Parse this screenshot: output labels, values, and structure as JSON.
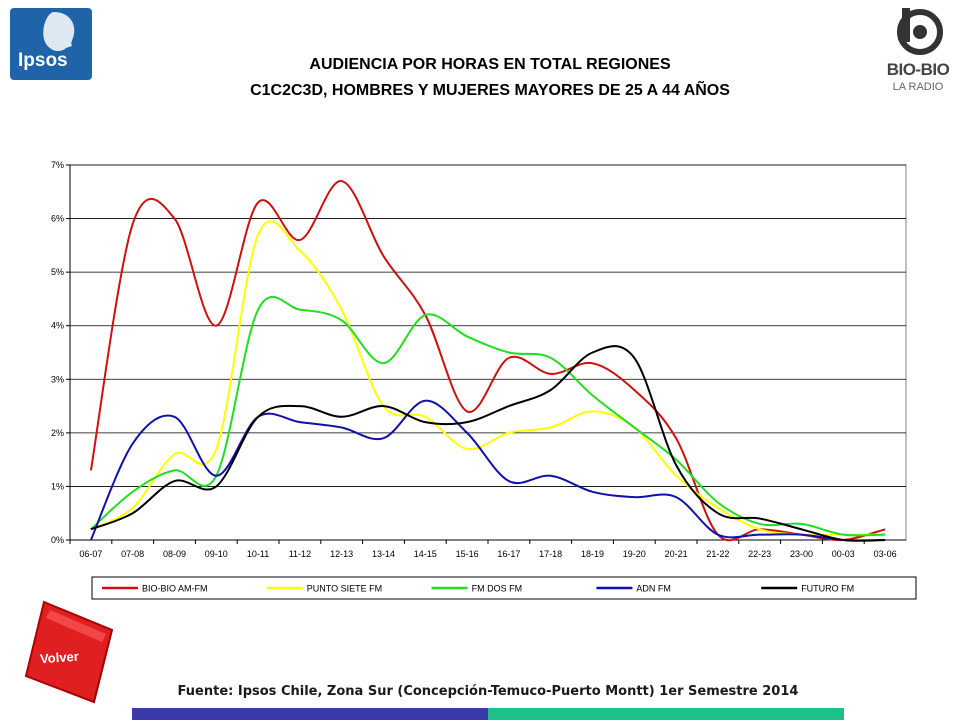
{
  "logos": {
    "ipsos": "Ipsos",
    "biobio_name": "BIO-BIO",
    "biobio_sub": "LA RADIO"
  },
  "title": {
    "line1": "AUDIENCIA POR HORAS EN TOTAL REGIONES",
    "line2": "C1C2C3D, HOMBRES Y MUJERES MAYORES DE 25 A 44 AÑOS"
  },
  "volver": {
    "label": "Volver",
    "color": "#e02020"
  },
  "source": "Fuente: Ipsos Chile, Zona Sur (Concepción-Temuco-Puerto Montt) 1er Semestre 2014",
  "chart_data": {
    "type": "line",
    "title": "AUDIENCIA POR HORAS EN TOTAL REGIONES",
    "xlabel": "",
    "ylabel": "",
    "ylim": [
      0,
      7
    ],
    "yticks": [
      "0%",
      "1%",
      "2%",
      "3%",
      "4%",
      "5%",
      "6%",
      "7%"
    ],
    "grid": true,
    "legend_position": "bottom",
    "categories": [
      "06-07",
      "07-08",
      "08-09",
      "09-10",
      "10-11",
      "11-12",
      "12-13",
      "13-14",
      "14-15",
      "15-16",
      "16-17",
      "17-18",
      "18-19",
      "19-20",
      "20-21",
      "21-22",
      "22-23",
      "23-00",
      "00-03",
      "03-06"
    ],
    "series": [
      {
        "name": "BIO-BIO AM-FM",
        "color": "#cc1111",
        "values": [
          1.3,
          5.9,
          6.0,
          4.0,
          6.3,
          5.6,
          6.7,
          5.3,
          4.2,
          2.4,
          3.4,
          3.1,
          3.3,
          2.8,
          1.9,
          0.1,
          0.2,
          0.1,
          0.0,
          0.2
        ]
      },
      {
        "name": "PUNTO SIETE FM",
        "color": "#ffff00",
        "values": [
          0.2,
          0.6,
          1.6,
          1.7,
          5.7,
          5.4,
          4.3,
          2.5,
          2.3,
          1.7,
          2.0,
          2.1,
          2.4,
          2.1,
          1.2,
          0.6,
          0.2,
          0.1,
          0.1,
          0.1
        ]
      },
      {
        "name": "FM DOS FM",
        "color": "#22dd22",
        "values": [
          0.2,
          0.9,
          1.3,
          1.2,
          4.3,
          4.3,
          4.1,
          3.3,
          4.2,
          3.8,
          3.5,
          3.4,
          2.7,
          2.1,
          1.5,
          0.7,
          0.3,
          0.3,
          0.1,
          0.1
        ]
      },
      {
        "name": "ADN FM",
        "color": "#1010aa",
        "values": [
          0.0,
          1.8,
          2.3,
          1.2,
          2.3,
          2.2,
          2.1,
          1.9,
          2.6,
          2.0,
          1.1,
          1.2,
          0.9,
          0.8,
          0.8,
          0.1,
          0.1,
          0.1,
          0.0,
          0.0
        ]
      },
      {
        "name": "FUTURO FM",
        "color": "#000000",
        "values": [
          0.2,
          0.5,
          1.1,
          1.0,
          2.3,
          2.5,
          2.3,
          2.5,
          2.2,
          2.2,
          2.5,
          2.8,
          3.5,
          3.4,
          1.4,
          0.5,
          0.4,
          0.2,
          0.0,
          0.0
        ]
      }
    ]
  }
}
